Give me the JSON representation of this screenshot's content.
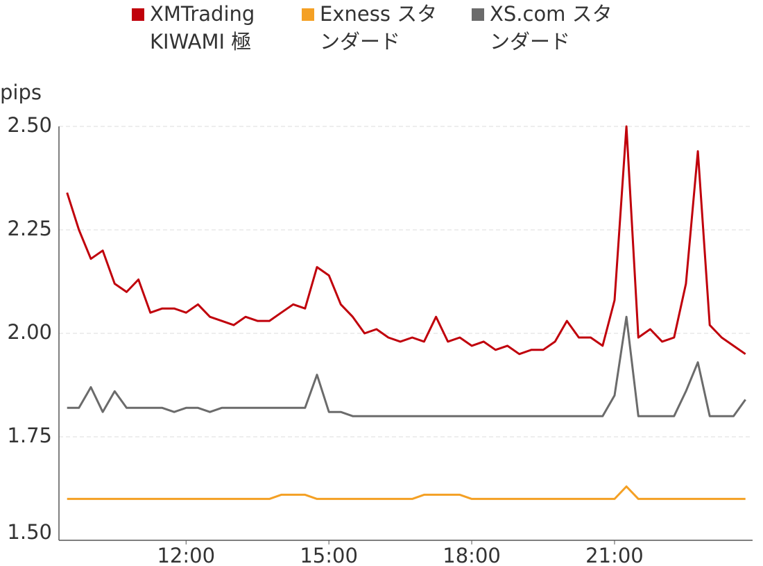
{
  "chart_data": {
    "type": "line",
    "y_label": "pips",
    "x": [
      9.5,
      9.75,
      10.0,
      10.25,
      10.5,
      10.75,
      11.0,
      11.25,
      11.5,
      11.75,
      12.0,
      12.25,
      12.5,
      12.75,
      13.0,
      13.25,
      13.5,
      13.75,
      14.0,
      14.25,
      14.5,
      14.75,
      15.0,
      15.25,
      15.5,
      15.75,
      16.0,
      16.25,
      16.5,
      16.75,
      17.0,
      17.25,
      17.5,
      17.75,
      18.0,
      18.25,
      18.5,
      18.75,
      19.0,
      19.25,
      19.5,
      19.75,
      20.0,
      20.25,
      20.5,
      20.75,
      21.0,
      21.25,
      21.5,
      21.75,
      22.0,
      22.25,
      22.5,
      22.75,
      23.0,
      23.25,
      23.5,
      23.75
    ],
    "series": [
      {
        "name": "XMTrading KIWAMI 極",
        "color": "#c0000b",
        "values": [
          2.34,
          2.25,
          2.18,
          2.2,
          2.12,
          2.1,
          2.13,
          2.05,
          2.06,
          2.06,
          2.05,
          2.07,
          2.04,
          2.03,
          2.02,
          2.04,
          2.03,
          2.03,
          2.05,
          2.07,
          2.06,
          2.16,
          2.14,
          2.07,
          2.04,
          2.0,
          2.01,
          1.99,
          1.98,
          1.99,
          1.98,
          2.04,
          1.98,
          1.99,
          1.97,
          1.98,
          1.96,
          1.97,
          1.95,
          1.96,
          1.96,
          1.98,
          2.03,
          1.99,
          1.99,
          1.97,
          2.08,
          2.5,
          1.99,
          2.01,
          1.98,
          1.99,
          2.12,
          2.44,
          2.02,
          1.99,
          1.97,
          1.95
        ]
      },
      {
        "name": "Exness スタンダード",
        "color": "#f4a024",
        "values": [
          1.6,
          1.6,
          1.6,
          1.6,
          1.6,
          1.6,
          1.6,
          1.6,
          1.6,
          1.6,
          1.6,
          1.6,
          1.6,
          1.6,
          1.6,
          1.6,
          1.6,
          1.6,
          1.61,
          1.61,
          1.61,
          1.6,
          1.6,
          1.6,
          1.6,
          1.6,
          1.6,
          1.6,
          1.6,
          1.6,
          1.61,
          1.61,
          1.61,
          1.61,
          1.6,
          1.6,
          1.6,
          1.6,
          1.6,
          1.6,
          1.6,
          1.6,
          1.6,
          1.6,
          1.6,
          1.6,
          1.6,
          1.63,
          1.6,
          1.6,
          1.6,
          1.6,
          1.6,
          1.6,
          1.6,
          1.6,
          1.6,
          1.6
        ]
      },
      {
        "name": "XS.com スタンダード",
        "color": "#6b6b6b",
        "values": [
          1.82,
          1.82,
          1.87,
          1.81,
          1.86,
          1.82,
          1.82,
          1.82,
          1.82,
          1.81,
          1.82,
          1.82,
          1.81,
          1.82,
          1.82,
          1.82,
          1.82,
          1.82,
          1.82,
          1.82,
          1.82,
          1.9,
          1.81,
          1.81,
          1.8,
          1.8,
          1.8,
          1.8,
          1.8,
          1.8,
          1.8,
          1.8,
          1.8,
          1.8,
          1.8,
          1.8,
          1.8,
          1.8,
          1.8,
          1.8,
          1.8,
          1.8,
          1.8,
          1.8,
          1.8,
          1.8,
          1.85,
          2.04,
          1.8,
          1.8,
          1.8,
          1.8,
          1.86,
          1.93,
          1.8,
          1.8,
          1.8,
          1.84
        ]
      }
    ],
    "xlim": [
      9.33,
      23.9
    ],
    "xticks": [
      {
        "value": 12,
        "label": "12:00"
      },
      {
        "value": 15,
        "label": "15:00"
      },
      {
        "value": 18,
        "label": "18:00"
      },
      {
        "value": 21,
        "label": "21:00"
      }
    ],
    "ylim": [
      1.5,
      2.5
    ],
    "yticks": [
      {
        "value": 1.5,
        "label": "1.50"
      },
      {
        "value": 1.75,
        "label": "1.75"
      },
      {
        "value": 2.0,
        "label": "2.00"
      },
      {
        "value": 2.25,
        "label": "2.25"
      },
      {
        "value": 2.5,
        "label": "2.50"
      }
    ],
    "grid": true
  }
}
